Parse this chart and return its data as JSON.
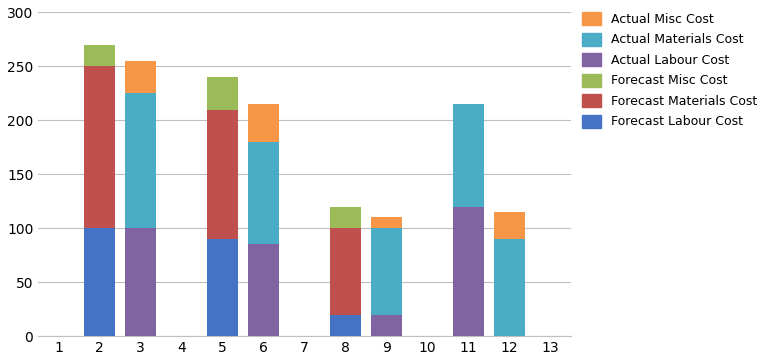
{
  "categories": [
    "1",
    "2",
    "3",
    "4",
    "5",
    "6",
    "7",
    "8",
    "9",
    "10",
    "11",
    "12",
    "13"
  ],
  "series": [
    {
      "name": "Forecast Labour Cost",
      "color": "#4472C4",
      "values": [
        0,
        100,
        0,
        0,
        90,
        0,
        0,
        20,
        0,
        0,
        0,
        0,
        0
      ]
    },
    {
      "name": "Forecast Materials Cost",
      "color": "#C0504D",
      "values": [
        0,
        150,
        0,
        0,
        120,
        0,
        0,
        80,
        0,
        0,
        0,
        0,
        0
      ]
    },
    {
      "name": "Forecast Misc Cost",
      "color": "#9BBB59",
      "values": [
        0,
        20,
        0,
        0,
        30,
        0,
        0,
        20,
        0,
        0,
        0,
        0,
        0
      ]
    },
    {
      "name": "Actual Labour Cost",
      "color": "#8064A2",
      "values": [
        0,
        0,
        100,
        0,
        0,
        85,
        0,
        0,
        20,
        0,
        120,
        0,
        0
      ]
    },
    {
      "name": "Actual Materials Cost",
      "color": "#4BACC6",
      "values": [
        0,
        0,
        125,
        0,
        0,
        95,
        0,
        0,
        80,
        0,
        95,
        90,
        0
      ]
    },
    {
      "name": "Actual Misc Cost",
      "color": "#F79646",
      "values": [
        0,
        0,
        30,
        0,
        0,
        35,
        0,
        0,
        10,
        0,
        0,
        25,
        0
      ]
    }
  ],
  "ylim": [
    0,
    300
  ],
  "yticks": [
    0,
    50,
    100,
    150,
    200,
    250,
    300
  ],
  "background_color": "#ffffff",
  "gridcolor": "#bfbfbf",
  "bar_width": 0.75,
  "legend_fontsize": 9,
  "tick_fontsize": 10,
  "figsize": [
    7.65,
    3.62
  ],
  "dpi": 100
}
